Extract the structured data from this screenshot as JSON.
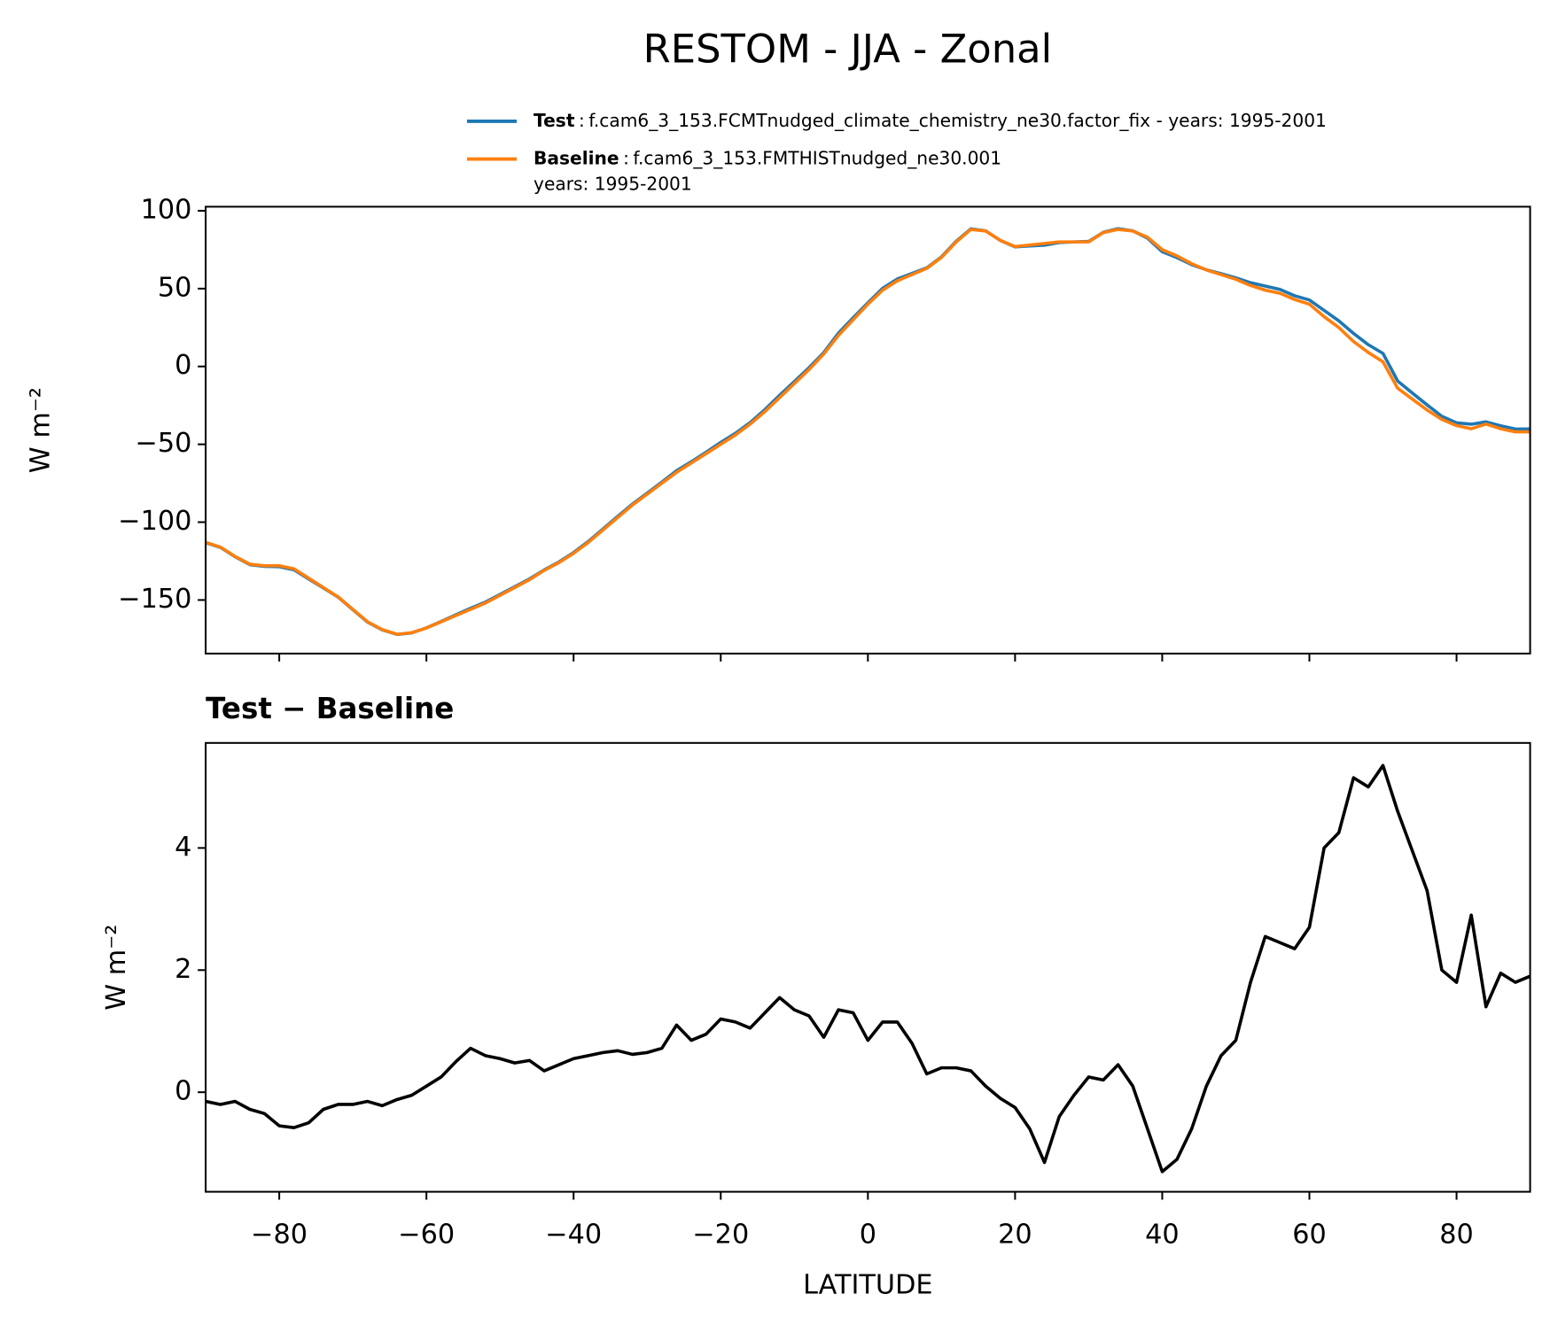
{
  "title": "RESTOM - JJA - Zonal",
  "chart_data": [
    {
      "type": "line",
      "ylabel": "W m⁻²",
      "x": [
        -90,
        -88,
        -86,
        -84,
        -82,
        -80,
        -78,
        -76,
        -74,
        -72,
        -70,
        -68,
        -66,
        -64,
        -62,
        -60,
        -58,
        -56,
        -54,
        -52,
        -50,
        -48,
        -46,
        -44,
        -42,
        -40,
        -38,
        -36,
        -34,
        -32,
        -30,
        -28,
        -26,
        -24,
        -22,
        -20,
        -18,
        -16,
        -14,
        -12,
        -10,
        -8,
        -6,
        -4,
        -2,
        0,
        2,
        4,
        6,
        8,
        10,
        12,
        14,
        16,
        18,
        20,
        22,
        24,
        26,
        28,
        30,
        32,
        34,
        36,
        38,
        40,
        42,
        44,
        46,
        48,
        50,
        52,
        54,
        56,
        58,
        60,
        62,
        64,
        66,
        68,
        70,
        72,
        74,
        76,
        78,
        80,
        82,
        84,
        86,
        88,
        90
      ],
      "series": [
        {
          "name": "Test",
          "description": [
            "f.cam6_3_153.FCMTnudged_climate_chemistry_ne30.factor_fix - years: 1995-2001"
          ],
          "color": "#1f77b4",
          "values": [
            -113.2,
            -116.2,
            -122.2,
            -127.3,
            -128.4,
            -128.6,
            -130.6,
            -136.5,
            -142.3,
            -148.2,
            -156.2,
            -164.2,
            -169.2,
            -172.1,
            -171.1,
            -167.9,
            -163.8,
            -159.5,
            -155.3,
            -151.4,
            -146.5,
            -141.5,
            -136.5,
            -130.7,
            -125.6,
            -119.5,
            -112.4,
            -104.4,
            -96.3,
            -88.4,
            -81.4,
            -74.3,
            -66.9,
            -61.2,
            -55.1,
            -48.8,
            -42.9,
            -36.0,
            -27.7,
            -18.5,
            -9.7,
            -0.8,
            8.9,
            21.4,
            31.3,
            40.9,
            50.2,
            56.2,
            59.8,
            63.3,
            70.4,
            80.4,
            88.4,
            87.1,
            80.9,
            76.8,
            77.4,
            77.9,
            79.6,
            80.0,
            80.3,
            86.2,
            88.5,
            87.1,
            82.4,
            73.7,
            69.9,
            65.4,
            62.1,
            59.6,
            56.9,
            53.8,
            51.6,
            49.5,
            45.4,
            42.7,
            36.0,
            29.3,
            21.2,
            14.0,
            8.4,
            -9.4,
            -17.1,
            -24.7,
            -32.0,
            -36.2,
            -37.1,
            -35.6,
            -38.1,
            -40.2,
            -40.1
          ]
        },
        {
          "name": "Baseline",
          "description": [
            "f.cam6_3_153.FMTHISTnudged_ne30.001",
            "years: 1995-2001"
          ],
          "color": "#ff7f0e",
          "values": [
            -113,
            -116,
            -122,
            -127,
            -128,
            -128,
            -130,
            -136,
            -142,
            -148,
            -156,
            -164,
            -169,
            -172,
            -171,
            -168,
            -164,
            -160,
            -156,
            -152,
            -147,
            -142,
            -137,
            -131,
            -126,
            -120,
            -113,
            -105,
            -97,
            -89,
            -82,
            -75,
            -68,
            -62,
            -56,
            -50,
            -44,
            -37,
            -29,
            -20,
            -11,
            -2,
            8,
            20,
            30,
            40,
            49,
            55,
            59,
            63,
            70,
            80,
            88,
            87,
            81,
            77,
            78,
            79,
            80,
            80,
            80,
            86,
            88,
            87,
            83,
            75,
            71,
            66,
            62,
            59,
            56,
            52,
            49,
            47,
            43,
            40,
            32,
            25,
            16,
            9,
            3,
            -14,
            -21,
            -28,
            -34,
            -38,
            -40,
            -37,
            -40,
            -42,
            -42
          ]
        }
      ],
      "xlim": [
        -90,
        90
      ],
      "xticks": [
        -80,
        -60,
        -40,
        -20,
        0,
        20,
        40,
        60,
        80
      ],
      "ylim": [
        -184.4,
        102.6
      ],
      "yticks": [
        100,
        50,
        0,
        {
          "value": -50,
          "label": "−50"
        },
        {
          "value": -100,
          "label": "−100"
        },
        {
          "value": -150,
          "label": "−150"
        }
      ]
    },
    {
      "type": "line",
      "title": "Test − Baseline",
      "xlabel": "LATITUDE",
      "ylabel": "W m⁻²",
      "x": [
        -90,
        -88,
        -86,
        -84,
        -82,
        -80,
        -78,
        -76,
        -74,
        -72,
        -70,
        -68,
        -66,
        -64,
        -62,
        -60,
        -58,
        -56,
        -54,
        -52,
        -50,
        -48,
        -46,
        -44,
        -42,
        -40,
        -38,
        -36,
        -34,
        -32,
        -30,
        -28,
        -26,
        -24,
        -22,
        -20,
        -18,
        -16,
        -14,
        -12,
        -10,
        -8,
        -6,
        -4,
        -2,
        0,
        2,
        4,
        6,
        8,
        10,
        12,
        14,
        16,
        18,
        20,
        22,
        24,
        26,
        28,
        30,
        32,
        34,
        36,
        38,
        40,
        42,
        44,
        46,
        48,
        50,
        52,
        54,
        56,
        58,
        60,
        62,
        64,
        66,
        68,
        70,
        72,
        74,
        76,
        78,
        80,
        82,
        84,
        86,
        88,
        90
      ],
      "color": "#000000",
      "values": [
        -0.15,
        -0.2,
        -0.15,
        -0.28,
        -0.35,
        -0.55,
        -0.58,
        -0.5,
        -0.28,
        -0.2,
        -0.2,
        -0.15,
        -0.22,
        -0.12,
        -0.05,
        0.1,
        0.25,
        0.5,
        0.72,
        0.6,
        0.55,
        0.48,
        0.52,
        0.35,
        0.45,
        0.55,
        0.6,
        0.65,
        0.68,
        0.62,
        0.65,
        0.72,
        1.1,
        0.85,
        0.95,
        1.2,
        1.15,
        1.05,
        1.3,
        1.55,
        1.35,
        1.25,
        0.9,
        1.35,
        1.3,
        0.85,
        1.15,
        1.15,
        0.8,
        0.3,
        0.4,
        0.4,
        0.35,
        0.1,
        -0.1,
        -0.25,
        -0.6,
        -1.15,
        -0.4,
        -0.05,
        0.25,
        0.2,
        0.45,
        0.1,
        -0.6,
        -1.3,
        -1.1,
        -0.6,
        0.1,
        0.6,
        0.85,
        1.8,
        2.55,
        2.45,
        2.35,
        2.7,
        4.0,
        4.25,
        5.15,
        5.0,
        5.35,
        4.6,
        3.95,
        3.3,
        2.0,
        1.8,
        2.9,
        1.4,
        1.95,
        1.8,
        1.9
      ],
      "xlim": [
        -90,
        90
      ],
      "xticks": [
        {
          "value": -80,
          "label": "−80"
        },
        {
          "value": -60,
          "label": "−60"
        },
        {
          "value": -40,
          "label": "−40"
        },
        {
          "value": -20,
          "label": "−20"
        },
        0,
        20,
        40,
        60,
        80
      ],
      "ylim": [
        -1.63,
        5.72
      ],
      "yticks": [
        0,
        2,
        4
      ]
    }
  ]
}
